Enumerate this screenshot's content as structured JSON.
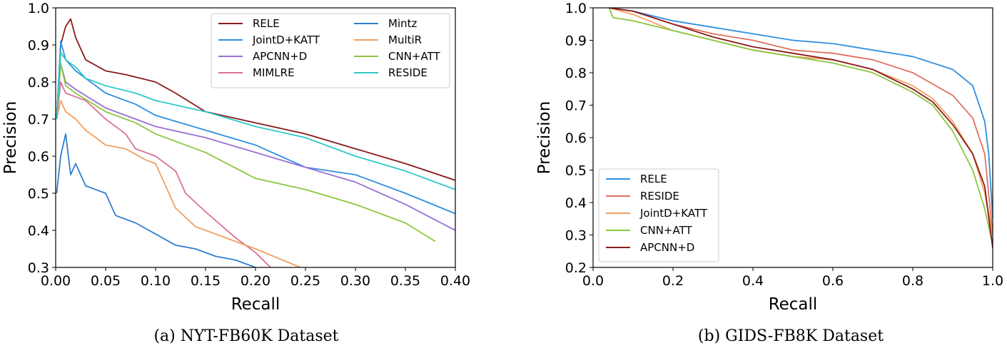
{
  "chart_data": [
    {
      "type": "line",
      "caption": "(a)  NYT-FB60K Dataset",
      "xlabel": "Recall",
      "ylabel": "Precision",
      "xlim": [
        0.0,
        0.4
      ],
      "ylim": [
        0.3,
        1.0
      ],
      "xticks": [
        "0.00",
        "0.05",
        "0.10",
        "0.15",
        "0.20",
        "0.25",
        "0.30",
        "0.35",
        "0.40"
      ],
      "yticks": [
        "0.3",
        "0.4",
        "0.5",
        "0.6",
        "0.7",
        "0.8",
        "0.9",
        "1.0"
      ],
      "legend_position": "top-right",
      "series": [
        {
          "name": "RELE",
          "color": "#8b1a1a",
          "x": [
            0.001,
            0.005,
            0.01,
            0.015,
            0.02,
            0.03,
            0.05,
            0.07,
            0.1,
            0.12,
            0.15,
            0.2,
            0.25,
            0.3,
            0.35,
            0.4
          ],
          "y": [
            0.7,
            0.9,
            0.95,
            0.97,
            0.92,
            0.86,
            0.83,
            0.82,
            0.8,
            0.77,
            0.72,
            0.69,
            0.66,
            0.62,
            0.58,
            0.535
          ]
        },
        {
          "name": "JointD+KATT",
          "color": "#2f8fe0",
          "x": [
            0.001,
            0.005,
            0.01,
            0.02,
            0.05,
            0.08,
            0.1,
            0.15,
            0.2,
            0.25,
            0.3,
            0.35,
            0.4
          ],
          "y": [
            0.7,
            0.91,
            0.86,
            0.83,
            0.77,
            0.74,
            0.71,
            0.67,
            0.63,
            0.57,
            0.55,
            0.5,
            0.445
          ]
        },
        {
          "name": "APCNN+D",
          "color": "#9b6fd6",
          "x": [
            0.001,
            0.005,
            0.01,
            0.02,
            0.05,
            0.08,
            0.1,
            0.15,
            0.2,
            0.25,
            0.3,
            0.35,
            0.4
          ],
          "y": [
            0.7,
            0.85,
            0.8,
            0.78,
            0.73,
            0.7,
            0.68,
            0.65,
            0.61,
            0.57,
            0.53,
            0.47,
            0.4
          ]
        },
        {
          "name": "MIMLRE",
          "color": "#d9709a",
          "x": [
            0.001,
            0.005,
            0.01,
            0.02,
            0.03,
            0.05,
            0.07,
            0.08,
            0.1,
            0.12,
            0.13,
            0.15,
            0.18,
            0.2,
            0.215
          ],
          "y": [
            0.7,
            0.8,
            0.77,
            0.76,
            0.75,
            0.7,
            0.66,
            0.62,
            0.6,
            0.56,
            0.5,
            0.45,
            0.38,
            0.34,
            0.3
          ]
        },
        {
          "name": "Mintz",
          "color": "#2f7fcf",
          "x": [
            0.001,
            0.005,
            0.01,
            0.015,
            0.02,
            0.03,
            0.05,
            0.06,
            0.08,
            0.1,
            0.12,
            0.14,
            0.16,
            0.18,
            0.2
          ],
          "y": [
            0.5,
            0.6,
            0.66,
            0.55,
            0.58,
            0.52,
            0.5,
            0.44,
            0.42,
            0.39,
            0.36,
            0.35,
            0.33,
            0.32,
            0.3
          ]
        },
        {
          "name": "MultiR",
          "color": "#f0a060",
          "x": [
            0.001,
            0.005,
            0.01,
            0.02,
            0.03,
            0.05,
            0.07,
            0.09,
            0.1,
            0.11,
            0.12,
            0.14,
            0.17,
            0.2,
            0.245
          ],
          "y": [
            0.7,
            0.75,
            0.72,
            0.7,
            0.67,
            0.63,
            0.62,
            0.59,
            0.58,
            0.52,
            0.46,
            0.41,
            0.38,
            0.35,
            0.3
          ]
        },
        {
          "name": "CNN+ATT",
          "color": "#8cc63f",
          "x": [
            0.001,
            0.005,
            0.01,
            0.02,
            0.05,
            0.08,
            0.1,
            0.12,
            0.15,
            0.2,
            0.25,
            0.3,
            0.35,
            0.38
          ],
          "y": [
            0.7,
            0.85,
            0.79,
            0.77,
            0.72,
            0.69,
            0.66,
            0.64,
            0.61,
            0.54,
            0.51,
            0.47,
            0.42,
            0.37
          ]
        },
        {
          "name": "RESIDE",
          "color": "#2ec8c8",
          "x": [
            0.001,
            0.005,
            0.01,
            0.02,
            0.03,
            0.05,
            0.08,
            0.1,
            0.15,
            0.2,
            0.25,
            0.3,
            0.35,
            0.4
          ],
          "y": [
            0.7,
            0.88,
            0.86,
            0.84,
            0.81,
            0.79,
            0.77,
            0.75,
            0.72,
            0.68,
            0.65,
            0.6,
            0.56,
            0.51
          ]
        }
      ],
      "legend_rows": [
        [
          "RELE",
          "Mintz"
        ],
        [
          "JointD+KATT",
          "MultiR"
        ],
        [
          "APCNN+D",
          "CNN+ATT"
        ],
        [
          "MIMLRE",
          "RESIDE"
        ]
      ]
    },
    {
      "type": "line",
      "caption": "(b)  GIDS-FB8K Dataset",
      "xlabel": "Recall",
      "ylabel": "Precision",
      "xlim": [
        0.0,
        1.0
      ],
      "ylim": [
        0.2,
        1.0
      ],
      "xticks": [
        "0.0",
        "0.2",
        "0.4",
        "0.6",
        "0.8",
        "1.0"
      ],
      "yticks": [
        "0.2",
        "0.3",
        "0.4",
        "0.5",
        "0.6",
        "0.7",
        "0.8",
        "0.9",
        "1.0"
      ],
      "legend_position": "bottom-left",
      "series": [
        {
          "name": "RELE",
          "color": "#2f8fe0",
          "x": [
            0.04,
            0.1,
            0.2,
            0.3,
            0.4,
            0.5,
            0.6,
            0.7,
            0.8,
            0.9,
            0.95,
            0.98,
            0.99,
            1.0
          ],
          "y": [
            1.0,
            0.99,
            0.96,
            0.94,
            0.92,
            0.9,
            0.89,
            0.87,
            0.85,
            0.81,
            0.76,
            0.65,
            0.55,
            0.35
          ]
        },
        {
          "name": "RESIDE",
          "color": "#e07060",
          "x": [
            0.04,
            0.1,
            0.2,
            0.3,
            0.4,
            0.5,
            0.6,
            0.7,
            0.8,
            0.9,
            0.95,
            0.98,
            1.0
          ],
          "y": [
            1.0,
            0.99,
            0.95,
            0.92,
            0.9,
            0.87,
            0.86,
            0.84,
            0.8,
            0.73,
            0.66,
            0.55,
            0.3
          ]
        },
        {
          "name": "JointD+KATT",
          "color": "#f0a060",
          "x": [
            0.04,
            0.1,
            0.2,
            0.3,
            0.4,
            0.5,
            0.6,
            0.7,
            0.8,
            0.85,
            0.9,
            0.95,
            0.98,
            1.0
          ],
          "y": [
            1.0,
            0.98,
            0.93,
            0.9,
            0.87,
            0.85,
            0.84,
            0.81,
            0.76,
            0.72,
            0.65,
            0.55,
            0.43,
            0.3
          ]
        },
        {
          "name": "CNN+ATT",
          "color": "#8cc63f",
          "x": [
            0.04,
            0.05,
            0.1,
            0.2,
            0.3,
            0.4,
            0.5,
            0.6,
            0.7,
            0.8,
            0.85,
            0.9,
            0.95,
            0.98,
            1.0
          ],
          "y": [
            1.0,
            0.97,
            0.96,
            0.93,
            0.9,
            0.87,
            0.85,
            0.83,
            0.8,
            0.74,
            0.7,
            0.62,
            0.5,
            0.38,
            0.27
          ]
        },
        {
          "name": "APCNN+D",
          "color": "#8b1a1a",
          "x": [
            0.04,
            0.1,
            0.2,
            0.3,
            0.4,
            0.5,
            0.6,
            0.7,
            0.8,
            0.85,
            0.9,
            0.95,
            0.98,
            1.0
          ],
          "y": [
            1.0,
            0.99,
            0.95,
            0.91,
            0.88,
            0.86,
            0.84,
            0.81,
            0.75,
            0.71,
            0.64,
            0.55,
            0.45,
            0.26
          ]
        }
      ],
      "legend_rows": [
        [
          "RELE"
        ],
        [
          "RESIDE"
        ],
        [
          "JointD+KATT"
        ],
        [
          "CNN+ATT"
        ],
        [
          "APCNN+D"
        ]
      ]
    }
  ]
}
